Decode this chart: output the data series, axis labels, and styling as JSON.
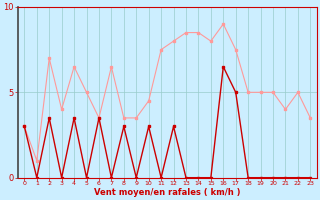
{
  "x": [
    0,
    1,
    2,
    3,
    4,
    5,
    6,
    7,
    8,
    9,
    10,
    11,
    12,
    13,
    14,
    15,
    16,
    17,
    18,
    19,
    20,
    21,
    22,
    23
  ],
  "wind_avg": [
    3.0,
    0.0,
    3.5,
    0.0,
    3.5,
    0.0,
    3.5,
    0.0,
    3.0,
    0.0,
    3.0,
    0.0,
    3.0,
    0.0,
    0.0,
    0.0,
    6.5,
    5.0,
    0.0,
    0.0,
    0.0,
    0.0,
    0.0,
    0.0
  ],
  "wind_gust": [
    3.0,
    1.0,
    7.0,
    4.0,
    6.5,
    5.0,
    3.5,
    6.5,
    3.5,
    3.5,
    4.5,
    7.5,
    8.0,
    8.5,
    8.5,
    8.0,
    9.0,
    7.5,
    5.0,
    5.0,
    5.0,
    4.0,
    5.0,
    3.5
  ],
  "ylim": [
    0,
    10
  ],
  "xlim": [
    -0.5,
    23.5
  ],
  "yticks": [
    0,
    5,
    10
  ],
  "xticks": [
    0,
    1,
    2,
    3,
    4,
    5,
    6,
    7,
    8,
    9,
    10,
    11,
    12,
    13,
    14,
    15,
    16,
    17,
    18,
    19,
    20,
    21,
    22,
    23
  ],
  "xlabel": "Vent moyen/en rafales ( km/h )",
  "avg_color": "#cc0000",
  "gust_color": "#ff9999",
  "bg_color": "#cceeff",
  "grid_color": "#99cccc",
  "tick_color": "#cc0000",
  "label_color": "#cc0000",
  "markersize": 2.0,
  "linewidth_avg": 1.0,
  "linewidth_gust": 0.8
}
